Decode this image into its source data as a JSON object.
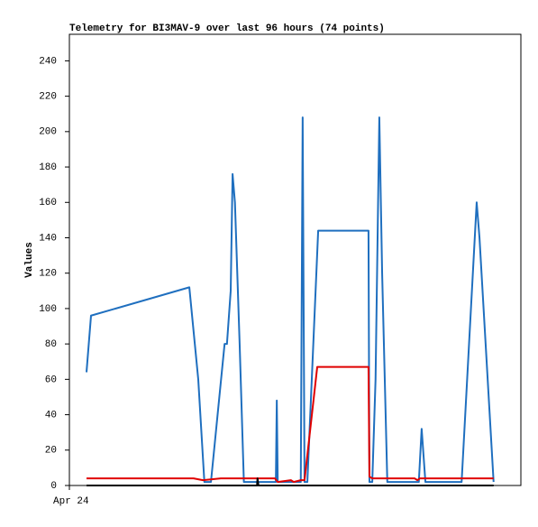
{
  "chart_data": {
    "type": "line",
    "title": "Telemetry for BI3MAV-9 over last 96 hours (74 points)",
    "y_label": "Values",
    "xlim": [
      0,
      96
    ],
    "xticks": [
      {
        "value": 0,
        "label": "Apr 24"
      }
    ],
    "ylim": [
      0,
      255
    ],
    "yticks": [
      0,
      20,
      40,
      60,
      80,
      100,
      120,
      140,
      160,
      180,
      200,
      220,
      240
    ],
    "grid": false,
    "series": [
      {
        "color": "#1f6fbf",
        "x": [
          3.64,
          4.6,
          25.5,
          27.4,
          28.7,
          30.1,
          33.0,
          33.5,
          34.3,
          34.7,
          35.2,
          36.2,
          37.1,
          43.9,
          44.1,
          44.3,
          49.2,
          49.6,
          50.0,
          50.6,
          52.9,
          63.6,
          63.8,
          64.4,
          65.1,
          65.9,
          66.5,
          67.6,
          74.3,
          74.9,
          75.7,
          83.4,
          86.6,
          87.2,
          90.2
        ],
        "values": [
          64,
          96,
          112,
          60,
          2,
          2,
          80,
          80,
          110,
          176,
          160,
          80,
          2,
          2,
          48,
          2,
          2,
          208,
          2,
          2,
          144,
          144,
          2,
          2,
          60,
          208,
          120,
          2,
          2,
          32,
          2,
          2,
          160,
          140,
          2
        ]
      },
      {
        "color": "#e00000",
        "x": [
          3.64,
          26.4,
          28.4,
          32.2,
          43.7,
          44.3,
          47.1,
          47.7,
          49.2,
          50.0,
          52.7,
          63.6,
          63.8,
          64.4,
          73.4,
          74.0,
          74.5,
          90.2
        ],
        "values": [
          4,
          4,
          3,
          4,
          4,
          2,
          3,
          2,
          3,
          3,
          67,
          67,
          5,
          4,
          4,
          3,
          4,
          4
        ]
      },
      {
        "color": "#000000",
        "x": [
          3.64,
          39.9,
          40.0,
          40.2,
          90.2
        ],
        "values": [
          0,
          0,
          4,
          0,
          0
        ]
      }
    ]
  }
}
